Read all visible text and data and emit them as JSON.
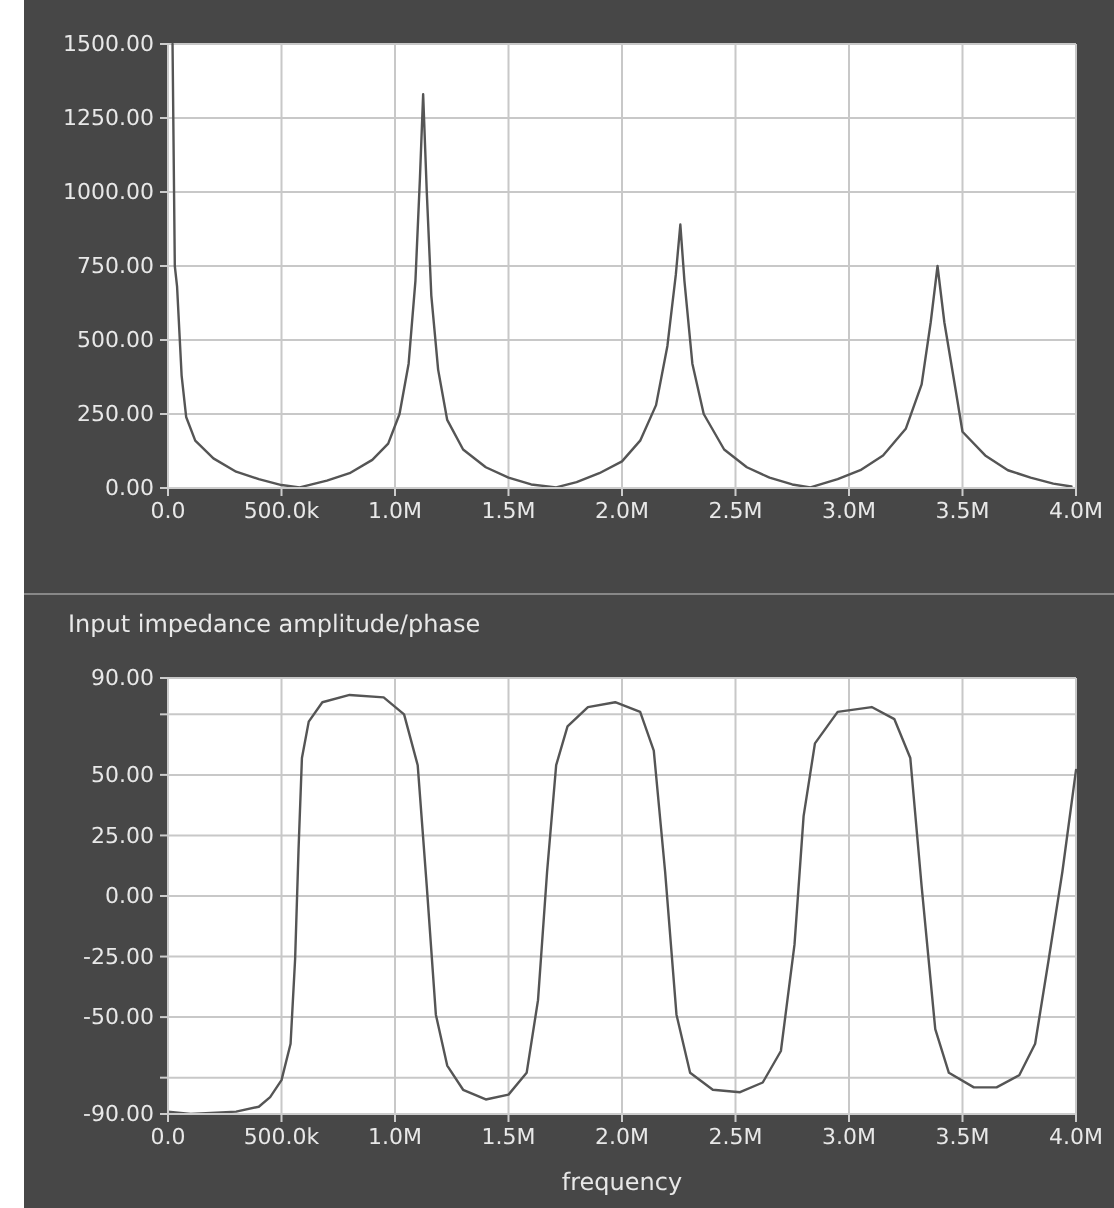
{
  "chart_data": [
    {
      "type": "line",
      "xlim": [
        0,
        4000000
      ],
      "ylim": [
        0,
        1500
      ],
      "xticks": [
        {
          "value": 0,
          "label": "0.0"
        },
        {
          "value": 500000,
          "label": "500.0k"
        },
        {
          "value": 1000000,
          "label": "1.0M"
        },
        {
          "value": 1500000,
          "label": "1.5M"
        },
        {
          "value": 2000000,
          "label": "2.0M"
        },
        {
          "value": 2500000,
          "label": "2.5M"
        },
        {
          "value": 3000000,
          "label": "3.0M"
        },
        {
          "value": 3500000,
          "label": "3.5M"
        },
        {
          "value": 4000000,
          "label": "4.0M"
        }
      ],
      "yticks": [
        {
          "value": 0,
          "label": "0.00"
        },
        {
          "value": 250,
          "label": "250.00"
        },
        {
          "value": 500,
          "label": "500.00"
        },
        {
          "value": 750,
          "label": "750.00"
        },
        {
          "value": 1000,
          "label": "1000.00"
        },
        {
          "value": 1250,
          "label": "1250.00"
        },
        {
          "value": 1500,
          "label": "1500.00"
        }
      ],
      "grid": true,
      "series": [
        {
          "color": "#555555",
          "x": [
            20000,
            30000,
            40000,
            60000,
            80000,
            120000,
            200000,
            300000,
            400000,
            500000,
            580000,
            700000,
            800000,
            900000,
            970000,
            1020000,
            1060000,
            1090000,
            1110000,
            1124000,
            1140000,
            1160000,
            1190000,
            1230000,
            1300000,
            1400000,
            1500000,
            1600000,
            1710000,
            1800000,
            1900000,
            2000000,
            2080000,
            2150000,
            2200000,
            2237000,
            2257000,
            2275000,
            2310000,
            2360000,
            2450000,
            2550000,
            2650000,
            2750000,
            2830000,
            2950000,
            3050000,
            3150000,
            3250000,
            3320000,
            3360000,
            3390000,
            3420000,
            3470000,
            3500000,
            3600000,
            3700000,
            3800000,
            3900000,
            3980000
          ],
          "values": [
            1500,
            750,
            680,
            380,
            240,
            160,
            100,
            55,
            30,
            10,
            2,
            25,
            50,
            95,
            150,
            250,
            420,
            700,
            1050,
            1330,
            1000,
            650,
            400,
            230,
            130,
            70,
            35,
            12,
            2,
            20,
            50,
            90,
            160,
            280,
            480,
            720,
            890,
            700,
            420,
            250,
            130,
            70,
            35,
            12,
            2,
            30,
            60,
            110,
            200,
            350,
            560,
            750,
            560,
            330,
            190,
            110,
            60,
            35,
            15,
            5
          ]
        }
      ]
    },
    {
      "type": "line",
      "title": "Input impedance amplitude/phase",
      "xlabel": "frequency",
      "xlim": [
        0,
        4000000
      ],
      "ylim": [
        -90,
        90
      ],
      "xticks": [
        {
          "value": 0,
          "label": "0.0"
        },
        {
          "value": 500000,
          "label": "500.0k"
        },
        {
          "value": 1000000,
          "label": "1.0M"
        },
        {
          "value": 1500000,
          "label": "1.5M"
        },
        {
          "value": 2000000,
          "label": "2.0M"
        },
        {
          "value": 2500000,
          "label": "2.5M"
        },
        {
          "value": 3000000,
          "label": "3.0M"
        },
        {
          "value": 3500000,
          "label": "3.5M"
        },
        {
          "value": 4000000,
          "label": "4.0M"
        }
      ],
      "yticks": [
        {
          "value": -90,
          "label": "-90.00"
        },
        {
          "value": -75,
          "label": null
        },
        {
          "value": -50,
          "label": "-50.00"
        },
        {
          "value": -25,
          "label": "-25.00"
        },
        {
          "value": 0,
          "label": "0.00"
        },
        {
          "value": 25,
          "label": "25.00"
        },
        {
          "value": 50,
          "label": "50.00"
        },
        {
          "value": 75,
          "label": null
        },
        {
          "value": 90,
          "label": "90.00"
        }
      ],
      "grid": true,
      "series": [
        {
          "color": "#555555",
          "x": [
            0,
            100000,
            300000,
            400000,
            450000,
            500000,
            540000,
            560000,
            575000,
            590000,
            620000,
            680000,
            800000,
            950000,
            1040000,
            1100000,
            1140000,
            1180000,
            1230000,
            1300000,
            1400000,
            1500000,
            1580000,
            1630000,
            1670000,
            1710000,
            1760000,
            1850000,
            1970000,
            2080000,
            2140000,
            2190000,
            2240000,
            2300000,
            2400000,
            2520000,
            2620000,
            2700000,
            2760000,
            2800000,
            2850000,
            2950000,
            3100000,
            3200000,
            3270000,
            3320000,
            3380000,
            3440000,
            3550000,
            3650000,
            3750000,
            3820000,
            3880000,
            3940000,
            4000000
          ],
          "values": [
            -89,
            -90,
            -89,
            -87,
            -83,
            -76,
            -61,
            -26,
            19,
            57,
            72,
            80,
            83,
            82,
            75,
            54,
            4,
            -49,
            -70,
            -80,
            -84,
            -82,
            -73,
            -43,
            10,
            54,
            70,
            78,
            80,
            76,
            60,
            10,
            -49,
            -73,
            -80,
            -81,
            -77,
            -64,
            -20,
            33,
            63,
            76,
            78,
            73,
            57,
            4,
            -55,
            -73,
            -79,
            -79,
            -74,
            -61,
            -26,
            10,
            52
          ]
        }
      ]
    }
  ]
}
